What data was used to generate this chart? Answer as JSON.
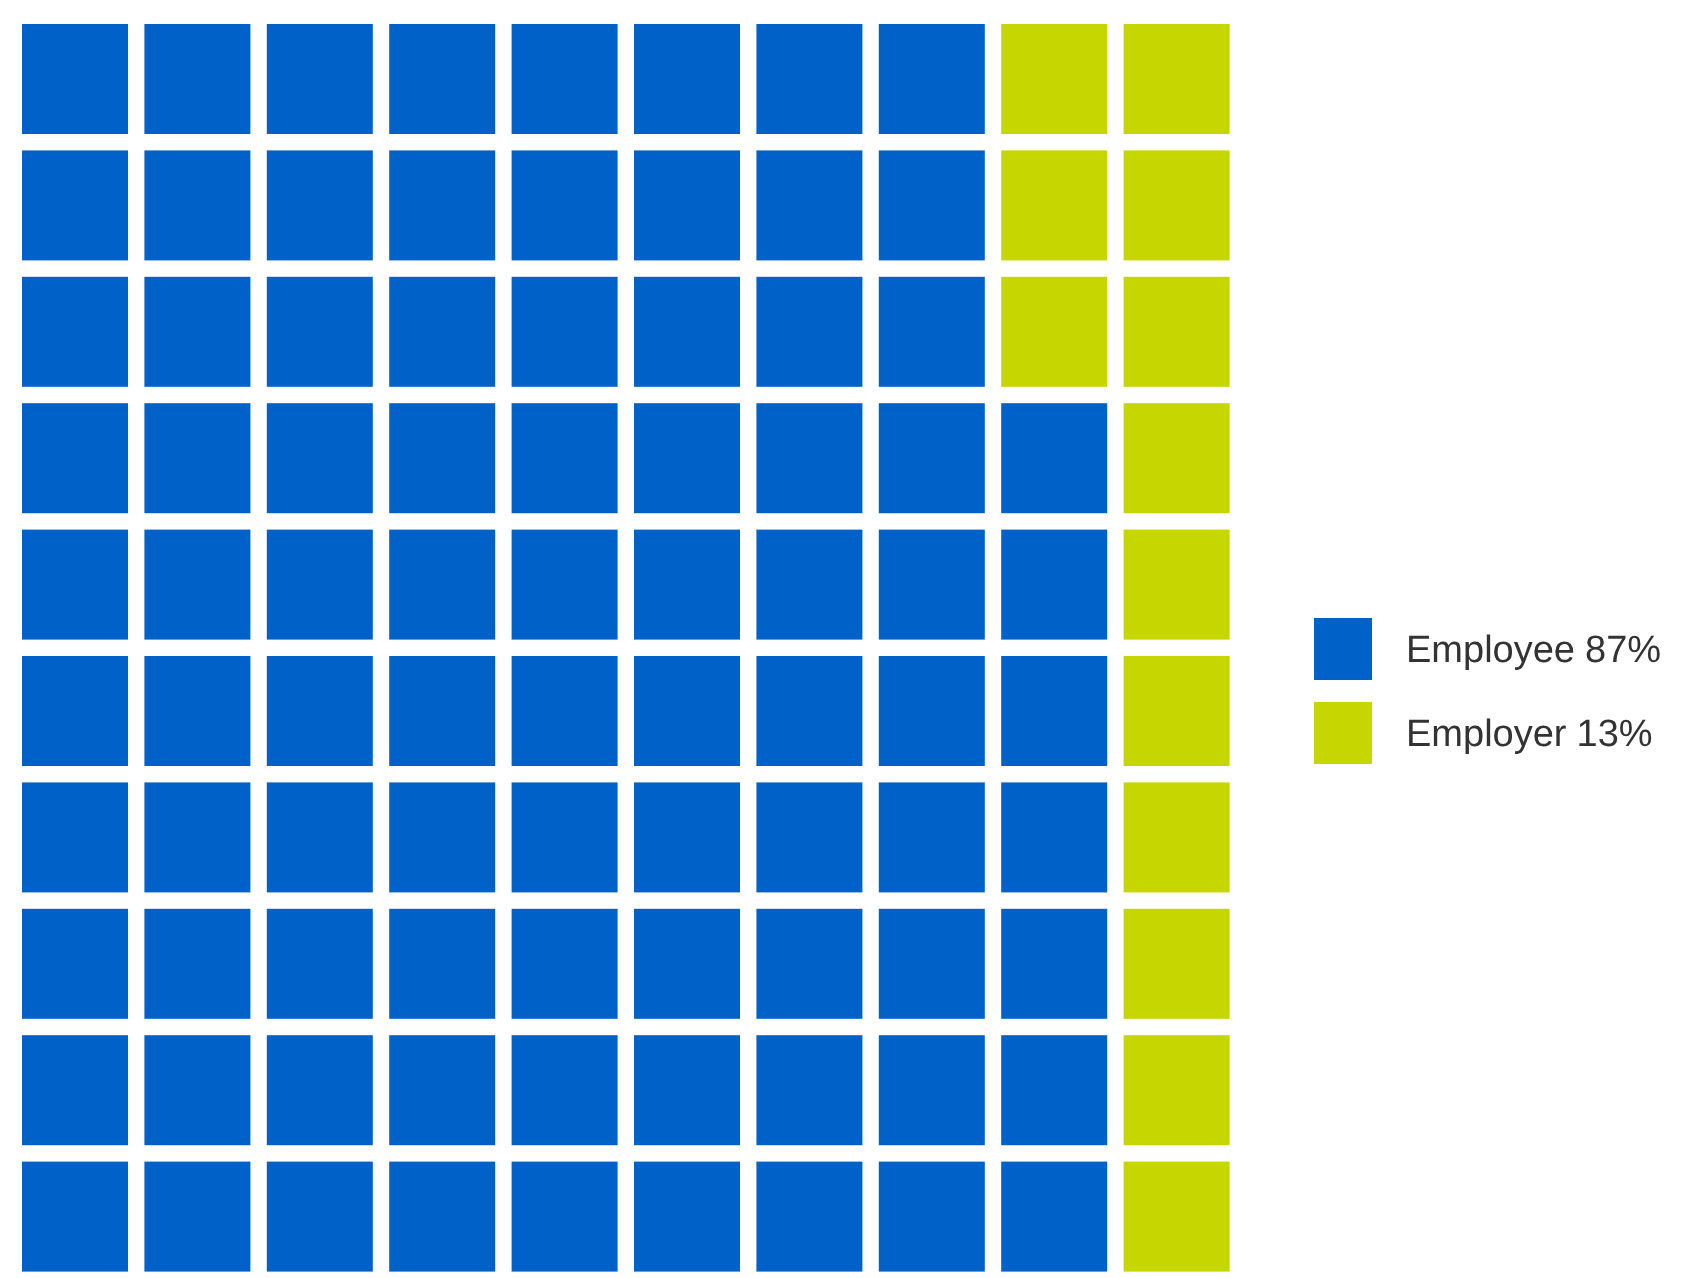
{
  "chart_data": {
    "type": "other",
    "categories": [
      "Employee",
      "Employer"
    ],
    "values": [
      87,
      13
    ],
    "value_labels": [
      "87%",
      "13%"
    ],
    "colors": [
      "#0061c9",
      "#c5d600"
    ]
  }
}
